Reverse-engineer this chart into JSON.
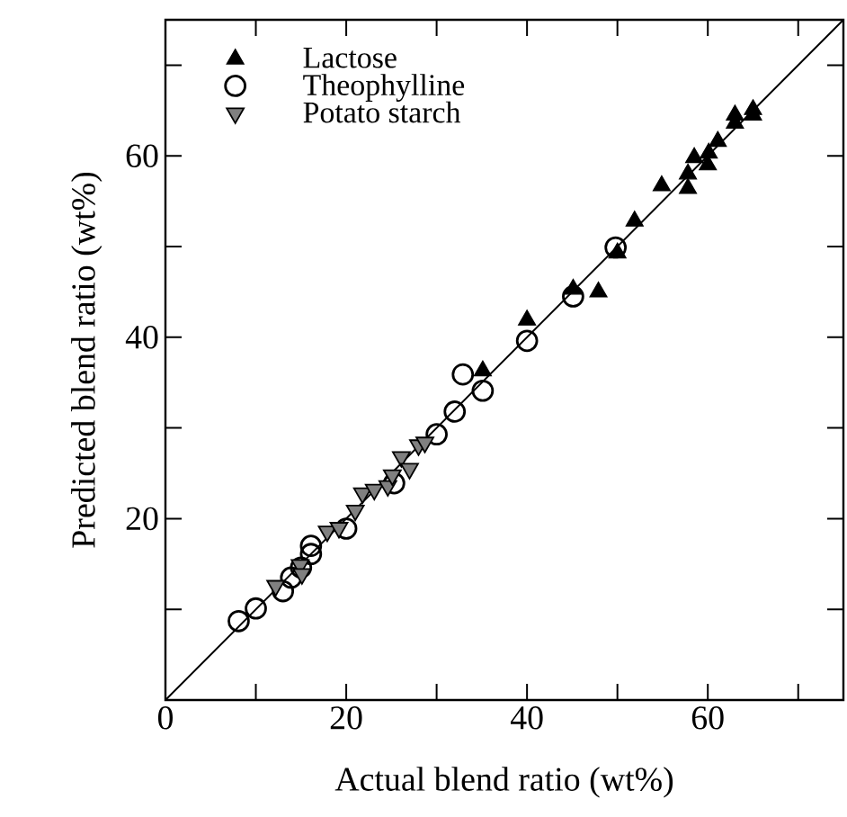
{
  "chart_data": {
    "type": "scatter",
    "xlabel": "Actual blend ratio (wt%)",
    "ylabel": "Predicted blend ratio  (wt%)",
    "xlim": [
      0,
      75
    ],
    "ylim": [
      0,
      75
    ],
    "xticks": [
      0,
      {
        "value": 10,
        "label": null
      },
      20,
      {
        "value": 30,
        "label": null
      },
      40,
      {
        "value": 50,
        "label": null
      },
      60,
      {
        "value": 70,
        "label": null
      }
    ],
    "yticks": [
      {
        "value": 0,
        "label": null
      },
      {
        "value": 10,
        "label": null
      },
      20,
      {
        "value": 30,
        "label": null
      },
      40,
      {
        "value": 50,
        "label": null
      },
      60,
      {
        "value": 70,
        "label": null
      }
    ],
    "legend": "top left",
    "series": [
      {
        "name": "Lactose",
        "marker": "triangle",
        "color": "#000000",
        "x": [
          65,
          65,
          63,
          63,
          61.1,
          60.1,
          60,
          58.5,
          57.8,
          57.8,
          54.9,
          51.9,
          50,
          47.9,
          45.1,
          40,
          35.1
        ],
        "values": [
          65.1,
          64.5,
          64.5,
          63.6,
          61.6,
          60.3,
          59,
          59.8,
          58,
          56.4,
          56.7,
          52.8,
          49.3,
          45,
          45.3,
          41.9,
          36.3
        ]
      },
      {
        "name": "Theophylline",
        "marker": "circle",
        "color": "#000000",
        "x": [
          8.1,
          10,
          13,
          13.9,
          15,
          16.1,
          16.1,
          20,
          25.3,
          30,
          32,
          32.9,
          35.1,
          40,
          45.1,
          49.8
        ],
        "values": [
          8.7,
          10.1,
          12,
          13.5,
          14.6,
          17,
          16.1,
          18.9,
          23.9,
          29.3,
          31.8,
          35.9,
          34.1,
          39.6,
          44.5,
          49.9
        ]
      },
      {
        "name": "Potato starch",
        "marker": "triangle-down",
        "color": "#808080",
        "x": [
          12.2,
          14.9,
          15.1,
          17.9,
          19.2,
          21,
          21.8,
          23.1,
          24.6,
          25.1,
          26.1,
          27,
          28,
          28.7
        ],
        "values": [
          12.6,
          14.9,
          13.9,
          18.6,
          19,
          20.9,
          22.8,
          23.2,
          23.6,
          24.8,
          26.8,
          25.5,
          28.1,
          28.4
        ]
      },
      {
        "type": "line",
        "color": "#000000",
        "x": [
          0,
          75
        ],
        "values": [
          0,
          75
        ]
      }
    ]
  }
}
